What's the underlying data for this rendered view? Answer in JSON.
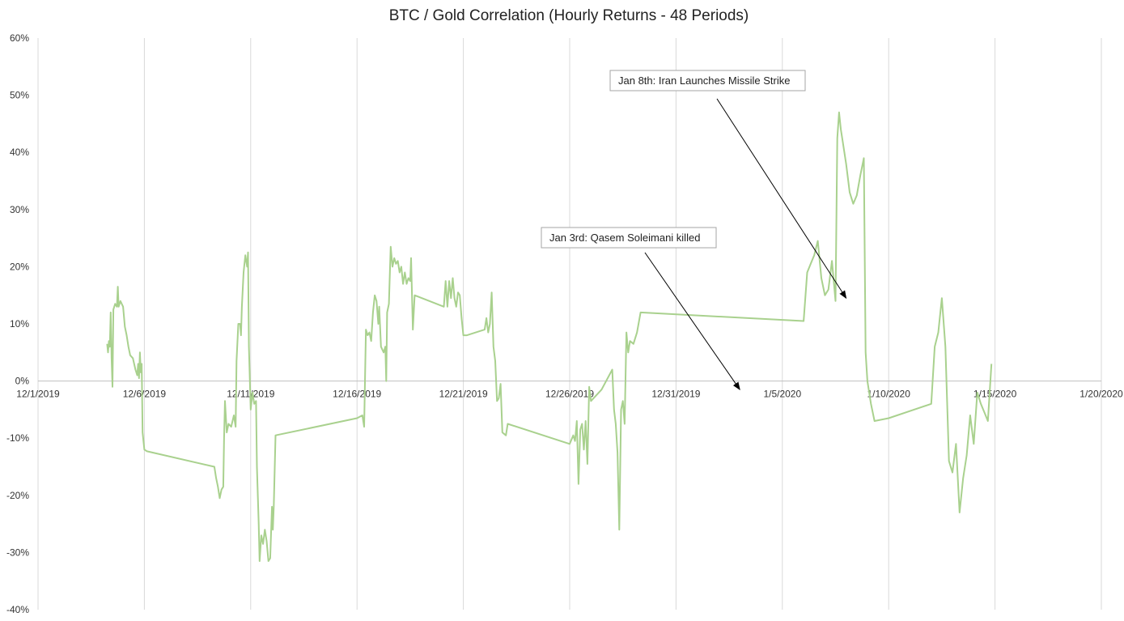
{
  "chart_data": {
    "type": "line",
    "title": "BTC / Gold Correlation (Hourly Returns - 48 Periods)",
    "xlabel": "",
    "ylabel": "",
    "x_axis": {
      "min": "2019-12-01",
      "max": "2020-01-20"
    },
    "ylim": [
      -40,
      60
    ],
    "y_ticks": [
      -40,
      -30,
      -20,
      -10,
      0,
      10,
      20,
      30,
      40,
      50,
      60
    ],
    "y_tick_labels": [
      "-40%",
      "-30%",
      "-20%",
      "-10%",
      "0%",
      "10%",
      "20%",
      "30%",
      "40%",
      "50%",
      "60%"
    ],
    "x_tick_labels": [
      "12/1/2019",
      "12/6/2019",
      "12/11/2019",
      "12/16/2019",
      "12/21/2019",
      "12/26/2019",
      "12/31/2019",
      "1/5/2020",
      "1/10/2020",
      "1/15/2020",
      "1/20/2020"
    ],
    "grid": {
      "vertical": true,
      "horizontal": false
    },
    "legend": "none",
    "series": [
      {
        "color": "#a9d18e",
        "points": [
          [
            "2019-12-04 06:00",
            6.5
          ],
          [
            "2019-12-04 07:00",
            5.0
          ],
          [
            "2019-12-04 08:00",
            7.0
          ],
          [
            "2019-12-04 09:00",
            6.0
          ],
          [
            "2019-12-04 10:00",
            12.0
          ],
          [
            "2019-12-04 11:00",
            4.0
          ],
          [
            "2019-12-04 12:00",
            -1.0
          ],
          [
            "2019-12-04 13:00",
            12.5
          ],
          [
            "2019-12-04 15:00",
            13.5
          ],
          [
            "2019-12-04 17:00",
            13.0
          ],
          [
            "2019-12-04 18:00",
            16.5
          ],
          [
            "2019-12-04 19:00",
            13.0
          ],
          [
            "2019-12-04 21:00",
            14.0
          ],
          [
            "2019-12-05 00:00",
            13.0
          ],
          [
            "2019-12-05 02:00",
            9.5
          ],
          [
            "2019-12-05 04:00",
            8.0
          ],
          [
            "2019-12-05 06:00",
            6.0
          ],
          [
            "2019-12-05 08:00",
            4.5
          ],
          [
            "2019-12-05 11:00",
            4.0
          ],
          [
            "2019-12-05 14:00",
            2.0
          ],
          [
            "2019-12-05 16:00",
            1.0
          ],
          [
            "2019-12-05 17:00",
            3.0
          ],
          [
            "2019-12-05 18:00",
            0.5
          ],
          [
            "2019-12-05 19:00",
            5.0
          ],
          [
            "2019-12-05 20:00",
            1.5
          ],
          [
            "2019-12-05 21:00",
            3.0
          ],
          [
            "2019-12-05 22:00",
            -9.0
          ],
          [
            "2019-12-06 00:00",
            -12.0
          ],
          [
            "2019-12-06 03:00",
            -12.3
          ],
          [
            "2019-12-09 07:00",
            -15.0
          ],
          [
            "2019-12-09 09:00",
            -17.0
          ],
          [
            "2019-12-09 11:00",
            -18.5
          ],
          [
            "2019-12-09 13:00",
            -20.5
          ],
          [
            "2019-12-09 15:00",
            -19.0
          ],
          [
            "2019-12-09 17:00",
            -18.5
          ],
          [
            "2019-12-09 18:00",
            -10.0
          ],
          [
            "2019-12-09 19:00",
            -3.5
          ],
          [
            "2019-12-09 21:00",
            -9.0
          ],
          [
            "2019-12-09 23:00",
            -7.5
          ],
          [
            "2019-12-10 02:00",
            -8.0
          ],
          [
            "2019-12-10 05:00",
            -6.0
          ],
          [
            "2019-12-10 07:00",
            -8.0
          ],
          [
            "2019-12-10 08:00",
            3.5
          ],
          [
            "2019-12-10 10:00",
            10.0
          ],
          [
            "2019-12-10 12:00",
            10.0
          ],
          [
            "2019-12-10 13:00",
            8.0
          ],
          [
            "2019-12-10 14:00",
            13.0
          ],
          [
            "2019-12-10 16:00",
            19.0
          ],
          [
            "2019-12-10 18:00",
            22.0
          ],
          [
            "2019-12-10 20:00",
            20.0
          ],
          [
            "2019-12-10 21:00",
            22.5
          ],
          [
            "2019-12-10 22:00",
            6.0
          ],
          [
            "2019-12-11 00:00",
            -5.0
          ],
          [
            "2019-12-11 02:00",
            -2.0
          ],
          [
            "2019-12-11 04:00",
            -4.0
          ],
          [
            "2019-12-11 06:00",
            -3.5
          ],
          [
            "2019-12-11 07:00",
            -15.0
          ],
          [
            "2019-12-11 09:00",
            -25.0
          ],
          [
            "2019-12-11 10:00",
            -31.5
          ],
          [
            "2019-12-11 12:00",
            -27.0
          ],
          [
            "2019-12-11 14:00",
            -28.5
          ],
          [
            "2019-12-11 16:00",
            -26.0
          ],
          [
            "2019-12-11 18:00",
            -28.0
          ],
          [
            "2019-12-11 20:00",
            -31.5
          ],
          [
            "2019-12-11 22:00",
            -31.0
          ],
          [
            "2019-12-12 00:00",
            -22.0
          ],
          [
            "2019-12-12 01:00",
            -26.0
          ],
          [
            "2019-12-12 02:00",
            -22.0
          ],
          [
            "2019-12-12 04:00",
            -9.5
          ],
          [
            "2019-12-16 00:00",
            -6.5
          ],
          [
            "2019-12-16 06:00",
            -6.0
          ],
          [
            "2019-12-16 08:00",
            -8.0
          ],
          [
            "2019-12-16 10:00",
            9.0
          ],
          [
            "2019-12-16 12:00",
            8.0
          ],
          [
            "2019-12-16 14:00",
            8.5
          ],
          [
            "2019-12-16 16:00",
            7.0
          ],
          [
            "2019-12-16 18:00",
            12.0
          ],
          [
            "2019-12-16 20:00",
            15.0
          ],
          [
            "2019-12-16 22:00",
            14.0
          ],
          [
            "2019-12-17 00:00",
            10.0
          ],
          [
            "2019-12-17 01:00",
            13.0
          ],
          [
            "2019-12-17 03:00",
            6.0
          ],
          [
            "2019-12-17 06:00",
            5.0
          ],
          [
            "2019-12-17 08:00",
            6.0
          ],
          [
            "2019-12-17 09:00",
            0.0
          ],
          [
            "2019-12-17 10:00",
            12.0
          ],
          [
            "2019-12-17 12:00",
            13.5
          ],
          [
            "2019-12-17 14:00",
            23.5
          ],
          [
            "2019-12-17 16:00",
            20.0
          ],
          [
            "2019-12-17 18:00",
            21.5
          ],
          [
            "2019-12-17 20:00",
            20.5
          ],
          [
            "2019-12-17 22:00",
            21.0
          ],
          [
            "2019-12-18 00:00",
            19.0
          ],
          [
            "2019-12-18 02:00",
            20.0
          ],
          [
            "2019-12-18 04:00",
            17.0
          ],
          [
            "2019-12-18 06:00",
            19.0
          ],
          [
            "2019-12-18 08:00",
            17.0
          ],
          [
            "2019-12-18 10:00",
            18.0
          ],
          [
            "2019-12-18 12:00",
            17.5
          ],
          [
            "2019-12-18 13:00",
            21.5
          ],
          [
            "2019-12-18 15:00",
            9.0
          ],
          [
            "2019-12-18 17:00",
            15.0
          ],
          [
            "2019-12-20 02:00",
            13.0
          ],
          [
            "2019-12-20 04:00",
            17.5
          ],
          [
            "2019-12-20 06:00",
            13.0
          ],
          [
            "2019-12-20 08:00",
            17.5
          ],
          [
            "2019-12-20 10:00",
            14.5
          ],
          [
            "2019-12-20 12:00",
            18.0
          ],
          [
            "2019-12-20 14:00",
            14.5
          ],
          [
            "2019-12-20 16:00",
            13.0
          ],
          [
            "2019-12-20 18:00",
            15.5
          ],
          [
            "2019-12-20 20:00",
            15.0
          ],
          [
            "2019-12-20 22:00",
            11.0
          ],
          [
            "2019-12-21 00:00",
            8.0
          ],
          [
            "2019-12-21 04:00",
            8.0
          ],
          [
            "2019-12-22 00:00",
            9.0
          ],
          [
            "2019-12-22 02:00",
            11.0
          ],
          [
            "2019-12-22 04:00",
            8.5
          ],
          [
            "2019-12-22 06:00",
            10.0
          ],
          [
            "2019-12-22 08:00",
            15.5
          ],
          [
            "2019-12-22 10:00",
            6.0
          ],
          [
            "2019-12-22 12:00",
            3.5
          ],
          [
            "2019-12-22 14:00",
            -3.5
          ],
          [
            "2019-12-22 16:00",
            -3.0
          ],
          [
            "2019-12-22 18:00",
            -0.5
          ],
          [
            "2019-12-22 20:00",
            -9.0
          ],
          [
            "2019-12-23 00:00",
            -9.5
          ],
          [
            "2019-12-23 02:00",
            -7.5
          ],
          [
            "2019-12-26 00:00",
            -11.0
          ],
          [
            "2019-12-26 04:00",
            -9.5
          ],
          [
            "2019-12-26 06:00",
            -10.5
          ],
          [
            "2019-12-26 08:00",
            -7.0
          ],
          [
            "2019-12-26 10:00",
            -18.0
          ],
          [
            "2019-12-26 12:00",
            -8.5
          ],
          [
            "2019-12-26 14:00",
            -7.5
          ],
          [
            "2019-12-26 16:00",
            -12.0
          ],
          [
            "2019-12-26 18:00",
            -7.0
          ],
          [
            "2019-12-26 20:00",
            -14.5
          ],
          [
            "2019-12-26 22:00",
            -1.0
          ],
          [
            "2019-12-27 00:00",
            -3.5
          ],
          [
            "2019-12-27 12:00",
            -1.5
          ],
          [
            "2019-12-28 00:00",
            2.0
          ],
          [
            "2019-12-28 02:00",
            -5.0
          ],
          [
            "2019-12-28 04:00",
            -7.5
          ],
          [
            "2019-12-28 06:00",
            -12.5
          ],
          [
            "2019-12-28 08:00",
            -26.0
          ],
          [
            "2019-12-28 10:00",
            -5.0
          ],
          [
            "2019-12-28 12:00",
            -3.5
          ],
          [
            "2019-12-28 14:00",
            -7.5
          ],
          [
            "2019-12-28 16:00",
            8.5
          ],
          [
            "2019-12-28 18:00",
            5.0
          ],
          [
            "2019-12-28 20:00",
            7.0
          ],
          [
            "2019-12-29 00:00",
            6.5
          ],
          [
            "2019-12-29 04:00",
            8.5
          ],
          [
            "2019-12-29 08:00",
            12.0
          ],
          [
            "2020-01-06 00:00",
            10.5
          ],
          [
            "2020-01-06 04:00",
            19.0
          ],
          [
            "2020-01-06 08:00",
            20.5
          ],
          [
            "2020-01-06 12:00",
            22.0
          ],
          [
            "2020-01-06 16:00",
            24.5
          ],
          [
            "2020-01-06 20:00",
            18.0
          ],
          [
            "2020-01-07 00:00",
            15.0
          ],
          [
            "2020-01-07 04:00",
            16.0
          ],
          [
            "2020-01-07 08:00",
            21.0
          ],
          [
            "2020-01-07 10:00",
            17.5
          ],
          [
            "2020-01-07 12:00",
            14.0
          ],
          [
            "2020-01-07 14:00",
            42.5
          ],
          [
            "2020-01-07 16:00",
            47.0
          ],
          [
            "2020-01-07 18:00",
            44.0
          ],
          [
            "2020-01-07 20:00",
            42.0
          ],
          [
            "2020-01-08 00:00",
            38.0
          ],
          [
            "2020-01-08 04:00",
            33.0
          ],
          [
            "2020-01-08 08:00",
            31.0
          ],
          [
            "2020-01-08 12:00",
            32.5
          ],
          [
            "2020-01-08 16:00",
            36.0
          ],
          [
            "2020-01-08 20:00",
            39.0
          ],
          [
            "2020-01-08 22:00",
            5.0
          ],
          [
            "2020-01-09 00:00",
            0.0
          ],
          [
            "2020-01-09 04:00",
            -4.0
          ],
          [
            "2020-01-09 08:00",
            -7.0
          ],
          [
            "2020-01-10 00:00",
            -6.5
          ],
          [
            "2020-01-12 00:00",
            -4.0
          ],
          [
            "2020-01-12 04:00",
            6.0
          ],
          [
            "2020-01-12 08:00",
            8.5
          ],
          [
            "2020-01-12 12:00",
            14.5
          ],
          [
            "2020-01-12 16:00",
            6.0
          ],
          [
            "2020-01-12 20:00",
            -14.0
          ],
          [
            "2020-01-13 00:00",
            -16.0
          ],
          [
            "2020-01-13 04:00",
            -11.0
          ],
          [
            "2020-01-13 08:00",
            -23.0
          ],
          [
            "2020-01-13 12:00",
            -17.0
          ],
          [
            "2020-01-13 16:00",
            -13.0
          ],
          [
            "2020-01-13 20:00",
            -6.0
          ],
          [
            "2020-01-14 00:00",
            -11.0
          ],
          [
            "2020-01-14 04:00",
            -2.0
          ],
          [
            "2020-01-14 08:00",
            -4.0
          ],
          [
            "2020-01-14 12:00",
            -5.5
          ],
          [
            "2020-01-14 16:00",
            -7.0
          ],
          [
            "2020-01-14 20:00",
            3.0
          ]
        ]
      }
    ],
    "annotations": [
      {
        "text": "Jan 3rd: Qasem Soleimani killed",
        "target": [
          "2020-01-03 00:00",
          -1.5
        ]
      },
      {
        "text": "Jan 8th: Iran Launches Missile Strike",
        "target": [
          "2020-01-08 00:00",
          14.5
        ]
      }
    ]
  }
}
